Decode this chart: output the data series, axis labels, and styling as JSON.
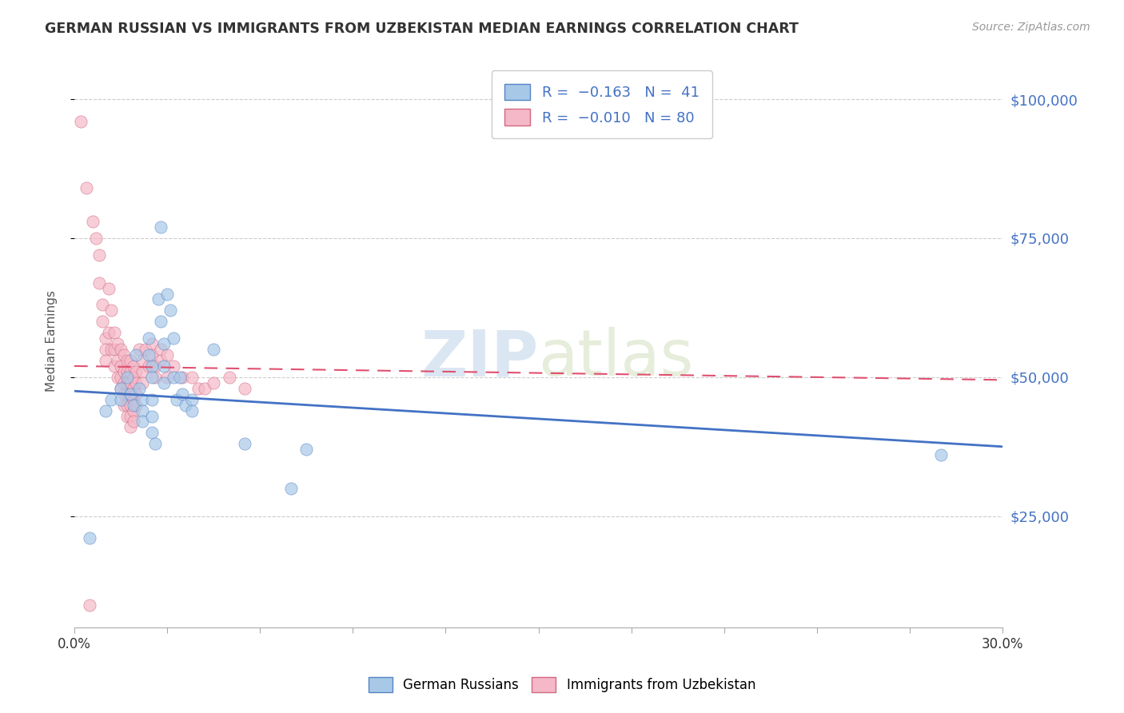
{
  "title": "GERMAN RUSSIAN VS IMMIGRANTS FROM UZBEKISTAN MEDIAN EARNINGS CORRELATION CHART",
  "source": "Source: ZipAtlas.com",
  "ylabel": "Median Earnings",
  "yticks": [
    25000,
    50000,
    75000,
    100000
  ],
  "ytick_labels": [
    "$25,000",
    "$50,000",
    "$75,000",
    "$100,000"
  ],
  "xmin": 0.0,
  "xmax": 0.3,
  "ymin": 5000,
  "ymax": 108000,
  "label1": "German Russians",
  "label2": "Immigrants from Uzbekistan",
  "color1": "#A8C8E8",
  "color2": "#F4B8C8",
  "trendline1_color": "#4472C4",
  "trendline2_color": "#E05070",
  "watermark_zip": "ZIP",
  "watermark_atlas": "atlas",
  "blue_trendline": [
    0.0,
    47500,
    0.3,
    37500
  ],
  "pink_trendline": [
    0.0,
    52000,
    0.3,
    49500
  ],
  "blue_scatter": [
    [
      0.005,
      21000
    ],
    [
      0.01,
      44000
    ],
    [
      0.012,
      46000
    ],
    [
      0.015,
      48000
    ],
    [
      0.015,
      46000
    ],
    [
      0.017,
      50000
    ],
    [
      0.018,
      47000
    ],
    [
      0.019,
      45000
    ],
    [
      0.02,
      54000
    ],
    [
      0.021,
      48000
    ],
    [
      0.022,
      46000
    ],
    [
      0.022,
      44000
    ],
    [
      0.022,
      42000
    ],
    [
      0.024,
      57000
    ],
    [
      0.024,
      54000
    ],
    [
      0.025,
      52000
    ],
    [
      0.025,
      50000
    ],
    [
      0.025,
      46000
    ],
    [
      0.025,
      43000
    ],
    [
      0.025,
      40000
    ],
    [
      0.026,
      38000
    ],
    [
      0.027,
      64000
    ],
    [
      0.028,
      60000
    ],
    [
      0.028,
      77000
    ],
    [
      0.029,
      56000
    ],
    [
      0.029,
      52000
    ],
    [
      0.029,
      49000
    ],
    [
      0.03,
      65000
    ],
    [
      0.031,
      62000
    ],
    [
      0.032,
      57000
    ],
    [
      0.032,
      50000
    ],
    [
      0.033,
      46000
    ],
    [
      0.034,
      50000
    ],
    [
      0.035,
      47000
    ],
    [
      0.036,
      45000
    ],
    [
      0.038,
      46000
    ],
    [
      0.038,
      44000
    ],
    [
      0.045,
      55000
    ],
    [
      0.055,
      38000
    ],
    [
      0.07,
      30000
    ],
    [
      0.075,
      37000
    ],
    [
      0.28,
      36000
    ]
  ],
  "pink_scatter": [
    [
      0.002,
      96000
    ],
    [
      0.004,
      84000
    ],
    [
      0.006,
      78000
    ],
    [
      0.007,
      75000
    ],
    [
      0.008,
      72000
    ],
    [
      0.008,
      67000
    ],
    [
      0.009,
      63000
    ],
    [
      0.009,
      60000
    ],
    [
      0.01,
      57000
    ],
    [
      0.01,
      55000
    ],
    [
      0.01,
      53000
    ],
    [
      0.011,
      66000
    ],
    [
      0.011,
      58000
    ],
    [
      0.012,
      62000
    ],
    [
      0.012,
      55000
    ],
    [
      0.013,
      58000
    ],
    [
      0.013,
      55000
    ],
    [
      0.013,
      52000
    ],
    [
      0.014,
      56000
    ],
    [
      0.014,
      53000
    ],
    [
      0.014,
      50000
    ],
    [
      0.015,
      55000
    ],
    [
      0.015,
      52000
    ],
    [
      0.015,
      50000
    ],
    [
      0.015,
      48000
    ],
    [
      0.016,
      54000
    ],
    [
      0.016,
      51000
    ],
    [
      0.016,
      49000
    ],
    [
      0.016,
      47000
    ],
    [
      0.016,
      45000
    ],
    [
      0.017,
      53000
    ],
    [
      0.017,
      51000
    ],
    [
      0.017,
      49000
    ],
    [
      0.017,
      47000
    ],
    [
      0.017,
      45000
    ],
    [
      0.017,
      43000
    ],
    [
      0.018,
      53000
    ],
    [
      0.018,
      51000
    ],
    [
      0.018,
      49000
    ],
    [
      0.018,
      47000
    ],
    [
      0.018,
      45000
    ],
    [
      0.018,
      43000
    ],
    [
      0.018,
      41000
    ],
    [
      0.019,
      52000
    ],
    [
      0.019,
      50000
    ],
    [
      0.019,
      48000
    ],
    [
      0.019,
      46000
    ],
    [
      0.019,
      44000
    ],
    [
      0.019,
      42000
    ],
    [
      0.02,
      51000
    ],
    [
      0.02,
      49000
    ],
    [
      0.02,
      47000
    ],
    [
      0.02,
      45000
    ],
    [
      0.021,
      55000
    ],
    [
      0.022,
      53000
    ],
    [
      0.022,
      51000
    ],
    [
      0.022,
      49000
    ],
    [
      0.023,
      55000
    ],
    [
      0.024,
      52000
    ],
    [
      0.025,
      56000
    ],
    [
      0.025,
      54000
    ],
    [
      0.026,
      52000
    ],
    [
      0.026,
      50000
    ],
    [
      0.028,
      55000
    ],
    [
      0.028,
      53000
    ],
    [
      0.03,
      54000
    ],
    [
      0.03,
      50000
    ],
    [
      0.032,
      52000
    ],
    [
      0.035,
      50000
    ],
    [
      0.038,
      50000
    ],
    [
      0.04,
      48000
    ],
    [
      0.042,
      48000
    ],
    [
      0.045,
      49000
    ],
    [
      0.05,
      50000
    ],
    [
      0.055,
      48000
    ],
    [
      0.005,
      9000
    ]
  ]
}
